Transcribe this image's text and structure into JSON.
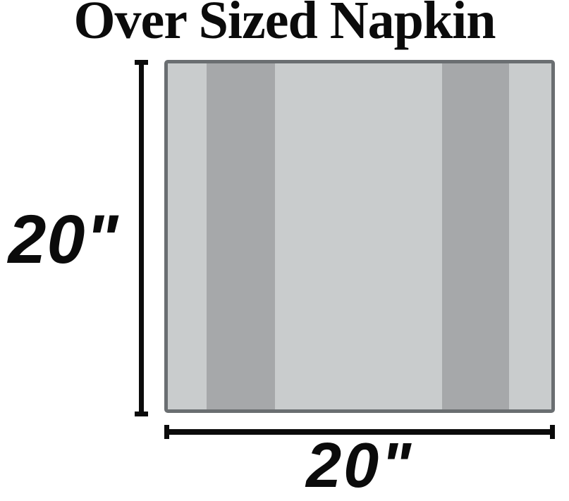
{
  "page": {
    "title": "Over Sized Napkin",
    "background_color": "#ffffff",
    "text_color": "#0b0b0b"
  },
  "napkin": {
    "border_color": "#6a6e71",
    "stripes": [
      {
        "name": "left-light-stripe",
        "color": "#c9cccd",
        "width_pct": 10.1
      },
      {
        "name": "left-dark-stripe",
        "color": "#a6a8aa",
        "width_pct": 17.8
      },
      {
        "name": "center-light-panel",
        "color": "#c9cccd",
        "width_pct": 43.6
      },
      {
        "name": "right-dark-stripe",
        "color": "#a6a8aa",
        "width_pct": 17.5
      },
      {
        "name": "right-light-stripe",
        "color": "#c9cccd",
        "width_pct": 11.0
      }
    ]
  },
  "dimensions": {
    "line_color": "#0b0b0b",
    "height_label": "20\"",
    "width_label": "20\""
  }
}
